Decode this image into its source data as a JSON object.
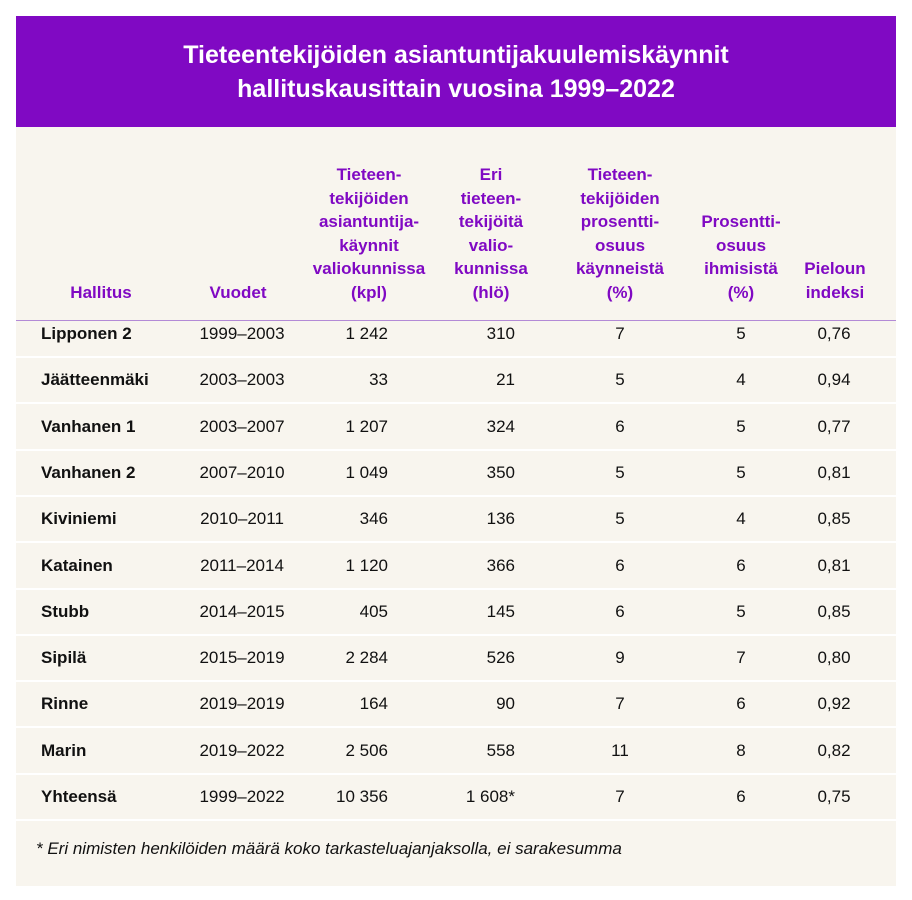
{
  "title": {
    "line1": "Tieteentekijöiden asiantuntijakuulemiskäynnit",
    "line2": "hallituskausittain vuosina 1999–2022"
  },
  "colors": {
    "accent": "#8009c3",
    "background": "#f8f5ee",
    "text": "#111111"
  },
  "headers": [
    [
      "Hallitus"
    ],
    [
      "Vuodet"
    ],
    [
      "Tieteen-",
      "tekijöiden",
      "asiantuntija-",
      "käynnit",
      "valiokunnissa",
      "(kpl)"
    ],
    [
      "Eri",
      "tieteen-",
      "tekijöitä",
      "valio-",
      "kunnissa",
      "(hlö)"
    ],
    [
      "Tieteen-",
      "tekijöiden",
      "prosentti-",
      "osuus",
      "käynneistä",
      "(%)"
    ],
    [
      "Prosentti-",
      "osuus",
      "ihmisistä",
      "(%)"
    ],
    [
      "Pieloun",
      "indeksi"
    ]
  ],
  "rows": [
    [
      "Lipponen 2",
      "1999–2003",
      "1 242",
      "310",
      "7",
      "5",
      "0,76"
    ],
    [
      "Jäätteenmäki",
      "2003–2003",
      "33",
      "21",
      "5",
      "4",
      "0,94"
    ],
    [
      "Vanhanen 1",
      "2003–2007",
      "1 207",
      "324",
      "6",
      "5",
      "0,77"
    ],
    [
      "Vanhanen 2",
      "2007–2010",
      "1 049",
      "350",
      "5",
      "5",
      "0,81"
    ],
    [
      "Kiviniemi",
      "2010–2011",
      "346",
      "136",
      "5",
      "4",
      "0,85"
    ],
    [
      "Katainen",
      "2011–2014",
      "1 120",
      "366",
      "6",
      "6",
      "0,81"
    ],
    [
      "Stubb",
      "2014–2015",
      "405",
      "145",
      "6",
      "5",
      "0,85"
    ],
    [
      "Sipilä",
      "2015–2019",
      "2 284",
      "526",
      "9",
      "7",
      "0,80"
    ],
    [
      "Rinne",
      "2019–2019",
      "164",
      "90",
      "7",
      "6",
      "0,92"
    ],
    [
      "Marin",
      "2019–2022",
      "2 506",
      "558",
      "11",
      "8",
      "0,82"
    ],
    [
      "Yhteensä",
      "1999–2022",
      "10 356",
      "1 608*",
      "7",
      "6",
      "0,75"
    ]
  ],
  "footnote": "* Eri nimisten henkilöiden määrä koko tarkasteluajanjaksolla, ei sarakesumma"
}
